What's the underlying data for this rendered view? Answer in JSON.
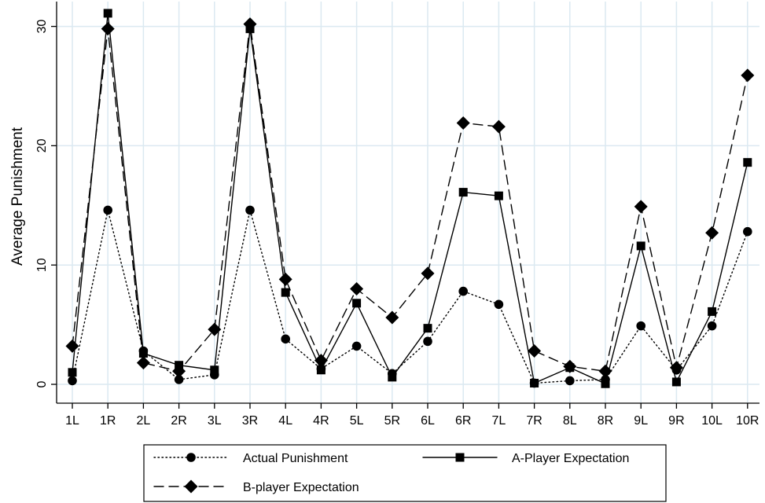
{
  "chart_data": {
    "type": "line",
    "title": "",
    "xlabel": "",
    "ylabel": "Average Punishment",
    "ylim": [
      -1.6,
      32
    ],
    "yticks": [
      0,
      10,
      20,
      30
    ],
    "grid": "horizontal and vertical, light blue",
    "legend_position": "bottom",
    "categories": [
      "1L",
      "1R",
      "2L",
      "2R",
      "3L",
      "3R",
      "4L",
      "4R",
      "5L",
      "5R",
      "6L",
      "6R",
      "7L",
      "7R",
      "8L",
      "8R",
      "9L",
      "9R",
      "10L",
      "10R"
    ],
    "series": [
      {
        "name": "Actual Punishment",
        "line_style": "dotted",
        "marker": "circle",
        "values": [
          0.3,
          14.6,
          2.8,
          0.4,
          0.8,
          14.6,
          3.8,
          1.3,
          3.2,
          0.9,
          3.6,
          7.8,
          6.7,
          0.1,
          0.3,
          0.4,
          4.9,
          1.2,
          4.9,
          12.8
        ]
      },
      {
        "name": "A-Player Expectation",
        "line_style": "solid",
        "marker": "square",
        "values": [
          1.0,
          31.1,
          2.6,
          1.6,
          1.2,
          29.8,
          7.7,
          1.2,
          6.8,
          0.6,
          4.7,
          16.1,
          15.8,
          0.1,
          1.4,
          0.05,
          11.6,
          0.2,
          6.1,
          18.6
        ]
      },
      {
        "name": "B-player Expectation",
        "line_style": "dashed",
        "marker": "diamond",
        "values": [
          3.2,
          29.8,
          1.8,
          1.1,
          4.6,
          30.2,
          8.8,
          2.0,
          8.0,
          5.6,
          9.3,
          21.9,
          21.6,
          2.8,
          1.5,
          1.1,
          14.9,
          1.4,
          12.7,
          25.9
        ]
      }
    ]
  },
  "colors": {
    "grid": "#dbe9f1",
    "line": "#000000",
    "background": "#ffffff"
  }
}
